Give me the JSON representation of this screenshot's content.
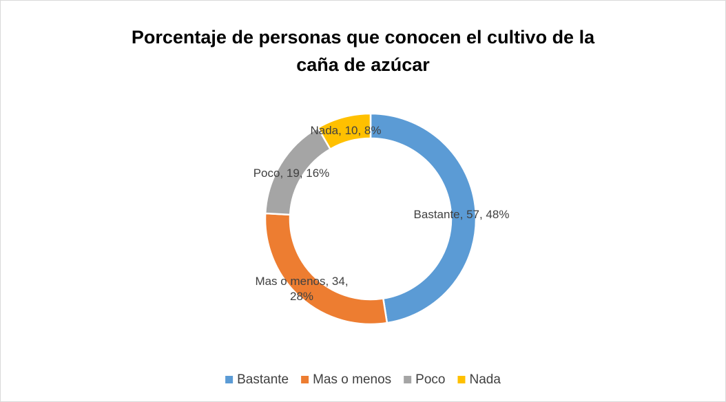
{
  "chart_data": {
    "type": "donut",
    "title": "Porcentaje de personas que conocen el cultivo de la caña de azúcar",
    "categories": [
      "Bastante",
      "Mas o menos",
      "Poco",
      "Nada"
    ],
    "values": [
      57,
      34,
      19,
      10
    ],
    "value_labels": [
      "Bastante, 57, 48%",
      "Mas o menos, 34, 28%",
      "Poco, 19, 16%",
      "Nada, 10, 8%"
    ],
    "colors": [
      "#5b9bd5",
      "#ed7d31",
      "#a5a5a5",
      "#ffc000"
    ],
    "legend": "bottom"
  }
}
